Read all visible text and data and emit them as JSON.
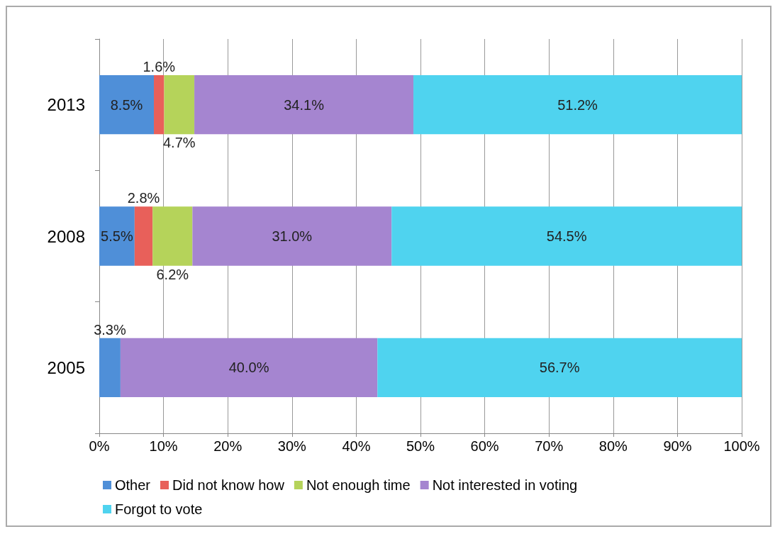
{
  "chart_data": {
    "type": "bar",
    "orientation": "horizontal",
    "stacked": true,
    "categories": [
      "2013",
      "2008",
      "2005"
    ],
    "series": [
      {
        "name": "Other",
        "color": "#4f8fd8",
        "values": [
          8.5,
          5.5,
          3.3
        ],
        "value_labels": [
          "8.5%",
          "5.5%",
          "3.3%"
        ]
      },
      {
        "name": "Did not know how",
        "color": "#e8605a",
        "values": [
          1.6,
          2.8,
          null
        ],
        "value_labels": [
          "1.6%",
          "2.8%",
          null
        ]
      },
      {
        "name": "Not enough time",
        "color": "#b5d35a",
        "values": [
          4.7,
          6.2,
          null
        ],
        "value_labels": [
          "4.7%",
          "6.2%",
          null
        ]
      },
      {
        "name": "Not interested in voting",
        "color": "#a585d0",
        "values": [
          34.1,
          31.0,
          40.0
        ],
        "value_labels": [
          "34.1%",
          "31.0%",
          "40.0%"
        ]
      },
      {
        "name": "Forgot to vote",
        "color": "#4fd3ef",
        "values": [
          51.2,
          54.5,
          56.7
        ],
        "value_labels": [
          "51.2%",
          "54.5%",
          "56.7%"
        ]
      }
    ],
    "xlim": [
      0,
      100
    ],
    "xticks": [
      {
        "value": 0,
        "label": "0%"
      },
      {
        "value": 10,
        "label": "10%"
      },
      {
        "value": 20,
        "label": "20%"
      },
      {
        "value": 30,
        "label": "30%"
      },
      {
        "value": 40,
        "label": "40%"
      },
      {
        "value": 50,
        "label": "50%"
      },
      {
        "value": 60,
        "label": "60%"
      },
      {
        "value": 70,
        "label": "70%"
      },
      {
        "value": 80,
        "label": "80%"
      },
      {
        "value": 90,
        "label": "90%"
      },
      {
        "value": 100,
        "label": "100%"
      }
    ],
    "grid": "x",
    "legend": "bottom"
  }
}
